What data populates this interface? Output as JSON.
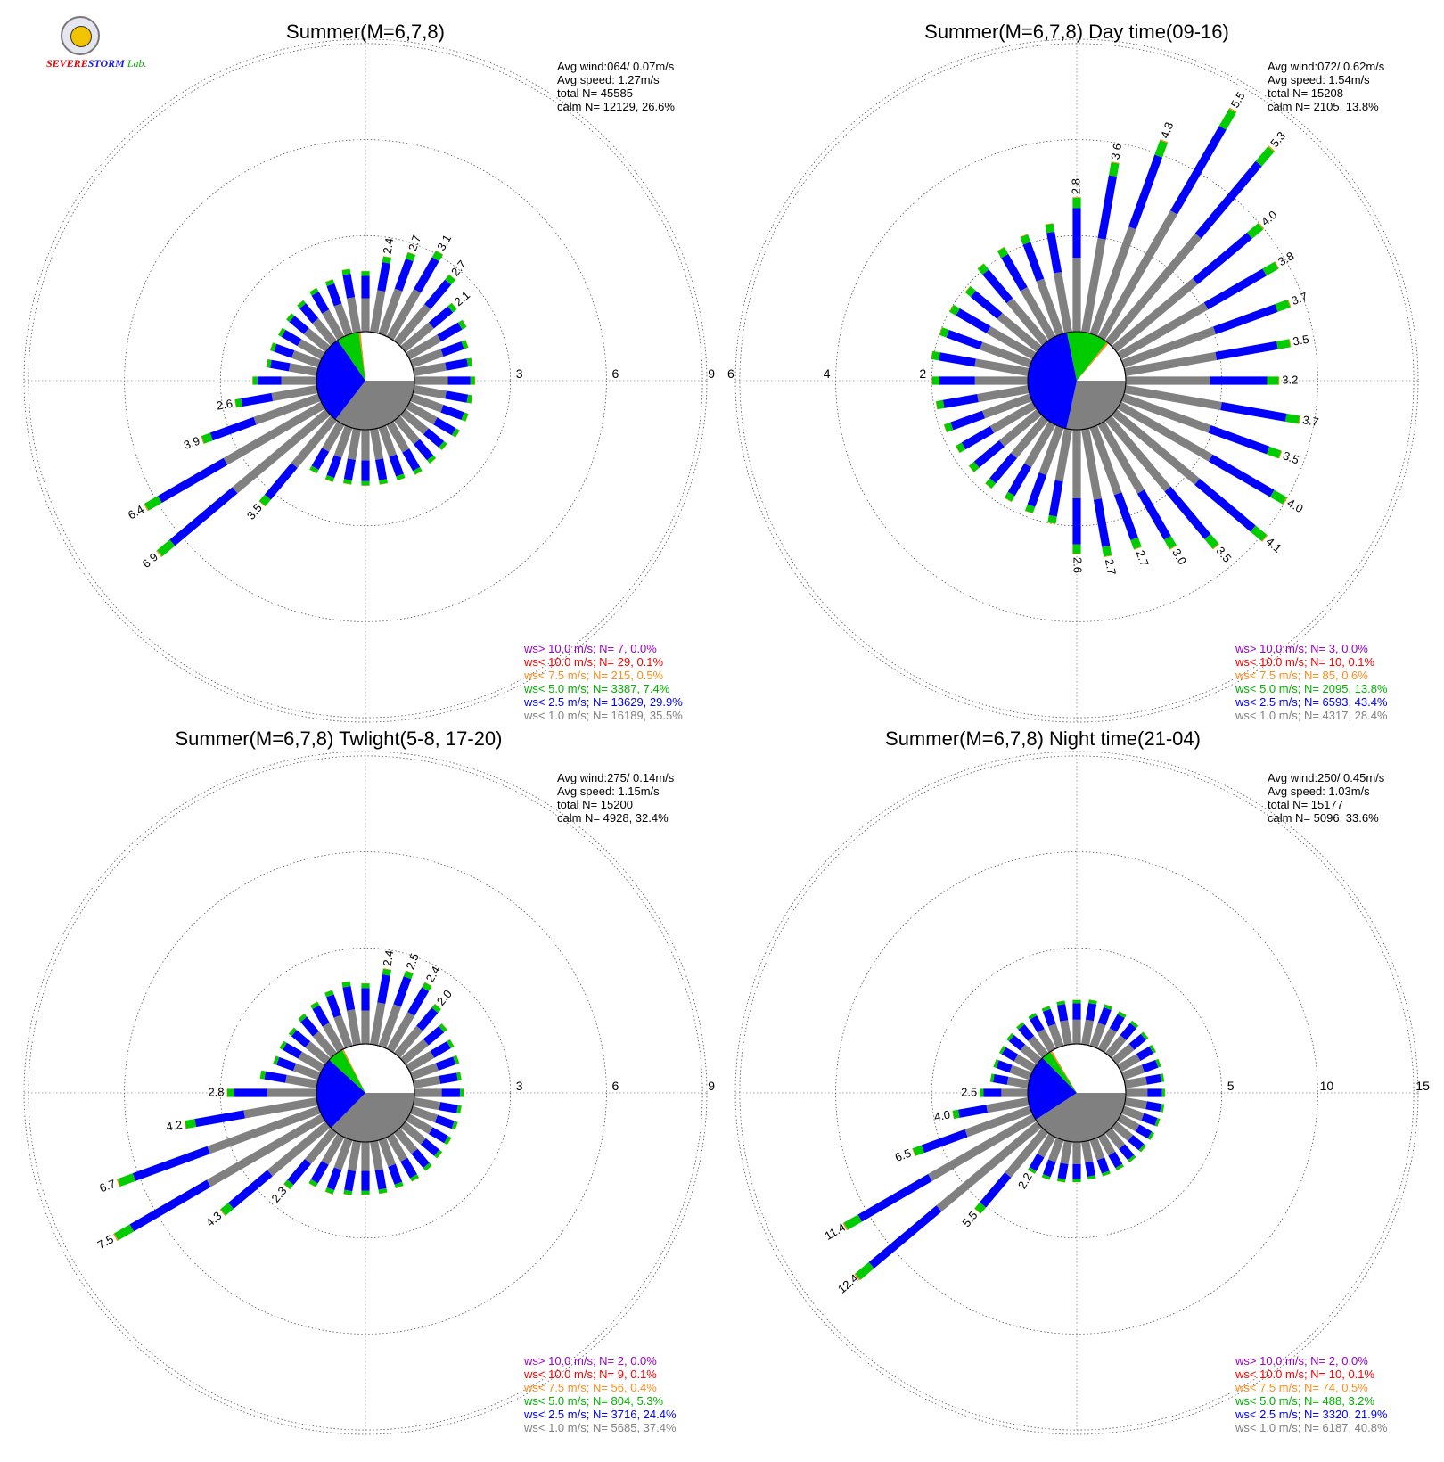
{
  "logo": {
    "text_severe": "SEVERE",
    "text_storm": "STORM",
    "text_lab": "Lab."
  },
  "colors": {
    "ws_lt_1": "#808080",
    "ws_lt_2_5": "#0000ff",
    "ws_lt_5": "#00cc00",
    "ws_lt_7_5": "#ff8c1a",
    "ws_lt_10": "#ff0000",
    "ws_gt_10": "#9900cc",
    "calm": "#ffffff",
    "grid": "#555555"
  },
  "chart_data": [
    {
      "type": "windrose",
      "title": "Summer(M=6,7,8)",
      "rings": [
        3,
        6,
        9
      ],
      "tick_labels": [
        "3",
        "6",
        "9"
      ],
      "tick_side": "right",
      "stats": [
        "Avg wind:064/ 0.07m/s",
        "Avg speed: 1.27m/s",
        "total N=      45585",
        "calm N=  12129,  26.6%"
      ],
      "legend": [
        {
          "text": "ws> 10.0 m/s; N=     7,  0.0%",
          "color": "#9900cc"
        },
        {
          "text": "ws< 10.0 m/s; N=    29,  0.1%",
          "color": "#ff0000"
        },
        {
          "text": "ws<  7.5 m/s; N=   215,  0.5%",
          "color": "#ff8c1a"
        },
        {
          "text": "ws<  5.0 m/s; N=  3387,  7.4%",
          "color": "#00b000"
        },
        {
          "text": "ws<  2.5 m/s; N= 13629, 29.9%",
          "color": "#0000ff"
        },
        {
          "text": "ws<  1.0 m/s; N= 16189, 35.5%",
          "color": "#808080"
        }
      ],
      "calm_pct": 26.6,
      "pie_pct": [
        35.5,
        29.9,
        7.4,
        0.6
      ],
      "bars": [
        {
          "dir": 0,
          "total": 1.9
        },
        {
          "dir": 10,
          "total": 2.4,
          "label": "2.4"
        },
        {
          "dir": 20,
          "total": 2.7,
          "label": "2.7"
        },
        {
          "dir": 30,
          "total": 3.1,
          "label": "3.1"
        },
        {
          "dir": 40,
          "total": 2.7,
          "label": "2.7"
        },
        {
          "dir": 50,
          "total": 2.1,
          "label": "2.1"
        },
        {
          "dir": 60,
          "total": 2.05
        },
        {
          "dir": 70,
          "total": 1.85
        },
        {
          "dir": 80,
          "total": 1.85
        },
        {
          "dir": 90,
          "total": 1.9
        },
        {
          "dir": 100,
          "total": 1.85
        },
        {
          "dir": 110,
          "total": 1.85
        },
        {
          "dir": 120,
          "total": 1.8
        },
        {
          "dir": 130,
          "total": 1.7
        },
        {
          "dir": 140,
          "total": 1.75
        },
        {
          "dir": 150,
          "total": 1.8
        },
        {
          "dir": 160,
          "total": 1.75
        },
        {
          "dir": 170,
          "total": 1.75
        },
        {
          "dir": 180,
          "total": 1.75
        },
        {
          "dir": 190,
          "total": 1.75
        },
        {
          "dir": 200,
          "total": 1.8
        },
        {
          "dir": 210,
          "total": 1.75
        },
        {
          "dir": 220,
          "total": 3.5,
          "label": "3.5"
        },
        {
          "dir": 230,
          "total": 6.9,
          "label": "6.9"
        },
        {
          "dir": 240,
          "total": 6.4,
          "label": "6.4"
        },
        {
          "dir": 250,
          "total": 3.9,
          "label": "3.9"
        },
        {
          "dir": 260,
          "total": 2.6,
          "label": "2.6"
        },
        {
          "dir": 270,
          "total": 2.0
        },
        {
          "dir": 280,
          "total": 1.6
        },
        {
          "dir": 290,
          "total": 1.6
        },
        {
          "dir": 300,
          "total": 1.55
        },
        {
          "dir": 310,
          "total": 1.6
        },
        {
          "dir": 320,
          "total": 1.65
        },
        {
          "dir": 330,
          "total": 1.75
        },
        {
          "dir": 340,
          "total": 1.8
        },
        {
          "dir": 350,
          "total": 2.0
        }
      ]
    },
    {
      "type": "windrose",
      "title": "Summer(M=6,7,8) Day time(09-16)",
      "rings": [
        2,
        4,
        6
      ],
      "tick_labels": [
        "2",
        "4",
        "6"
      ],
      "tick_side": "left",
      "stats": [
        "Avg wind:072/ 0.62m/s",
        "Avg speed: 1.54m/s",
        "total N=      15208",
        "calm N=  2105,  13.8%"
      ],
      "legend": [
        {
          "text": "ws> 10.0 m/s; N=     3,  0.0%",
          "color": "#9900cc"
        },
        {
          "text": "ws< 10.0 m/s; N=    10,  0.1%",
          "color": "#ff0000"
        },
        {
          "text": "ws<  7.5 m/s; N=    85,  0.6%",
          "color": "#ff8c1a"
        },
        {
          "text": "ws<  5.0 m/s; N=  2095, 13.8%",
          "color": "#00b000"
        },
        {
          "text": "ws<  2.5 m/s; N=  6593, 43.4%",
          "color": "#0000ff"
        },
        {
          "text": "ws<  1.0 m/s; N=  4317, 28.4%",
          "color": "#808080"
        }
      ],
      "calm_pct": 13.8,
      "pie_pct": [
        28.4,
        43.4,
        13.8,
        0.7
      ],
      "bars": [
        {
          "dir": 0,
          "total": 2.8,
          "label": "2.8"
        },
        {
          "dir": 10,
          "total": 3.6,
          "label": "3.6"
        },
        {
          "dir": 20,
          "total": 4.3,
          "label": "4.3"
        },
        {
          "dir": 30,
          "total": 5.5,
          "label": "5.5"
        },
        {
          "dir": 40,
          "total": 5.3,
          "label": "5.3"
        },
        {
          "dir": 50,
          "total": 4.0,
          "label": "4.0"
        },
        {
          "dir": 60,
          "total": 3.8,
          "label": "3.8"
        },
        {
          "dir": 70,
          "total": 3.7,
          "label": "3.7"
        },
        {
          "dir": 80,
          "total": 3.5,
          "label": "3.5"
        },
        {
          "dir": 90,
          "total": 3.2,
          "label": "3.2"
        },
        {
          "dir": 100,
          "total": 3.7,
          "label": "3.7"
        },
        {
          "dir": 110,
          "total": 3.5,
          "label": "3.5"
        },
        {
          "dir": 120,
          "total": 4.0,
          "label": "4.0"
        },
        {
          "dir": 130,
          "total": 4.1,
          "label": "4.1"
        },
        {
          "dir": 140,
          "total": 3.5,
          "label": "3.5"
        },
        {
          "dir": 150,
          "total": 3.0,
          "label": "3.0"
        },
        {
          "dir": 160,
          "total": 2.7,
          "label": "2.7"
        },
        {
          "dir": 170,
          "total": 2.7,
          "label": "2.7"
        },
        {
          "dir": 180,
          "total": 2.6,
          "label": "2.6"
        },
        {
          "dir": 190,
          "total": 2.0
        },
        {
          "dir": 200,
          "total": 1.9
        },
        {
          "dir": 210,
          "total": 1.85
        },
        {
          "dir": 220,
          "total": 1.85
        },
        {
          "dir": 230,
          "total": 1.85
        },
        {
          "dir": 240,
          "total": 1.85
        },
        {
          "dir": 250,
          "total": 1.9
        },
        {
          "dir": 260,
          "total": 1.95
        },
        {
          "dir": 270,
          "total": 2.0
        },
        {
          "dir": 280,
          "total": 2.05
        },
        {
          "dir": 290,
          "total": 2.0
        },
        {
          "dir": 300,
          "total": 2.0
        },
        {
          "dir": 310,
          "total": 1.95
        },
        {
          "dir": 320,
          "total": 2.1
        },
        {
          "dir": 330,
          "total": 2.15
        },
        {
          "dir": 340,
          "total": 2.2
        },
        {
          "dir": 350,
          "total": 2.3
        }
      ]
    },
    {
      "type": "windrose",
      "title": "Summer(M=6,7,8) Twlight(5-8, 17-20)",
      "rings": [
        3,
        6,
        9
      ],
      "tick_labels": [
        "3",
        "6",
        "9"
      ],
      "tick_side": "right",
      "stats": [
        "Avg wind:275/ 0.14m/s",
        "Avg speed: 1.15m/s",
        "total N=      15200",
        "calm N=  4928,  32.4%"
      ],
      "legend": [
        {
          "text": "ws> 10.0 m/s; N=     2,  0.0%",
          "color": "#9900cc"
        },
        {
          "text": "ws< 10.0 m/s; N=     9,  0.1%",
          "color": "#ff0000"
        },
        {
          "text": "ws<  7.5 m/s; N=    56,  0.4%",
          "color": "#ff8c1a"
        },
        {
          "text": "ws<  5.0 m/s; N=   804,  5.3%",
          "color": "#00b000"
        },
        {
          "text": "ws<  2.5 m/s; N=  3716, 24.4%",
          "color": "#0000ff"
        },
        {
          "text": "ws<  1.0 m/s; N=  5685, 37.4%",
          "color": "#808080"
        }
      ],
      "calm_pct": 32.4,
      "pie_pct": [
        37.4,
        24.4,
        5.3,
        0.5
      ],
      "bars": [
        {
          "dir": 0,
          "total": 1.9
        },
        {
          "dir": 10,
          "total": 2.4,
          "label": "2.4"
        },
        {
          "dir": 20,
          "total": 2.5,
          "label": "2.5"
        },
        {
          "dir": 30,
          "total": 2.4,
          "label": "2.4"
        },
        {
          "dir": 40,
          "total": 2.0,
          "label": "2.0"
        },
        {
          "dir": 50,
          "total": 1.7
        },
        {
          "dir": 60,
          "total": 1.6
        },
        {
          "dir": 70,
          "total": 1.55
        },
        {
          "dir": 80,
          "total": 1.5
        },
        {
          "dir": 90,
          "total": 1.55
        },
        {
          "dir": 100,
          "total": 1.5
        },
        {
          "dir": 110,
          "total": 1.5
        },
        {
          "dir": 120,
          "total": 1.5
        },
        {
          "dir": 130,
          "total": 1.5
        },
        {
          "dir": 140,
          "total": 1.55
        },
        {
          "dir": 150,
          "total": 1.6
        },
        {
          "dir": 160,
          "total": 1.6
        },
        {
          "dir": 170,
          "total": 1.65
        },
        {
          "dir": 180,
          "total": 1.65
        },
        {
          "dir": 190,
          "total": 1.7
        },
        {
          "dir": 200,
          "total": 1.8
        },
        {
          "dir": 210,
          "total": 1.8
        },
        {
          "dir": 220,
          "total": 2.3,
          "label": "2.3"
        },
        {
          "dir": 230,
          "total": 4.3,
          "label": "4.3"
        },
        {
          "dir": 240,
          "total": 7.5,
          "label": "7.5"
        },
        {
          "dir": 250,
          "total": 6.7,
          "label": "6.7"
        },
        {
          "dir": 260,
          "total": 4.2,
          "label": "4.2"
        },
        {
          "dir": 270,
          "total": 2.8,
          "label": "2.8"
        },
        {
          "dir": 280,
          "total": 1.8
        },
        {
          "dir": 290,
          "total": 1.5
        },
        {
          "dir": 300,
          "total": 1.5
        },
        {
          "dir": 310,
          "total": 1.5
        },
        {
          "dir": 320,
          "total": 1.6
        },
        {
          "dir": 330,
          "total": 1.7
        },
        {
          "dir": 340,
          "total": 1.85
        },
        {
          "dir": 350,
          "total": 2.0
        }
      ]
    },
    {
      "type": "windrose",
      "title": "Summer(M=6,7,8) Night time(21-04)",
      "rings": [
        5,
        10,
        15
      ],
      "tick_labels": [
        "5",
        "10",
        "15"
      ],
      "tick_side": "right",
      "stats": [
        "Avg wind:250/ 0.45m/s",
        "Avg speed: 1.03m/s",
        "total N=      15177",
        "calm N=  5096,  33.6%"
      ],
      "legend": [
        {
          "text": "ws> 10.0 m/s; N=     2,  0.0%",
          "color": "#9900cc"
        },
        {
          "text": "ws< 10.0 m/s; N=    10,  0.1%",
          "color": "#ff0000"
        },
        {
          "text": "ws<  7.5 m/s; N=    74,  0.5%",
          "color": "#ff8c1a"
        },
        {
          "text": "ws<  5.0 m/s; N=   488,  3.2%",
          "color": "#00b000"
        },
        {
          "text": "ws<  2.5 m/s; N=  3320, 21.9%",
          "color": "#0000ff"
        },
        {
          "text": "ws<  1.0 m/s; N=  6187, 40.8%",
          "color": "#808080"
        }
      ],
      "calm_pct": 33.6,
      "pie_pct": [
        40.8,
        21.9,
        3.2,
        0.6
      ],
      "bars": [
        {
          "dir": 0,
          "total": 2.3
        },
        {
          "dir": 10,
          "total": 2.35
        },
        {
          "dir": 20,
          "total": 2.3
        },
        {
          "dir": 30,
          "total": 2.25
        },
        {
          "dir": 40,
          "total": 2.2
        },
        {
          "dir": 50,
          "total": 2.15
        },
        {
          "dir": 60,
          "total": 2.1
        },
        {
          "dir": 70,
          "total": 2.05
        },
        {
          "dir": 80,
          "total": 2.05
        },
        {
          "dir": 90,
          "total": 2.05
        },
        {
          "dir": 100,
          "total": 2.05
        },
        {
          "dir": 110,
          "total": 2.0
        },
        {
          "dir": 120,
          "total": 2.0
        },
        {
          "dir": 130,
          "total": 2.0
        },
        {
          "dir": 140,
          "total": 2.0
        },
        {
          "dir": 150,
          "total": 2.0
        },
        {
          "dir": 160,
          "total": 2.0
        },
        {
          "dir": 170,
          "total": 2.0
        },
        {
          "dir": 180,
          "total": 2.1
        },
        {
          "dir": 190,
          "total": 2.15
        },
        {
          "dir": 200,
          "total": 2.2
        },
        {
          "dir": 210,
          "total": 2.2,
          "label": "2.2"
        },
        {
          "dir": 220,
          "total": 5.5,
          "label": "5.5"
        },
        {
          "dir": 230,
          "total": 12.4,
          "label": "12.4"
        },
        {
          "dir": 240,
          "total": 11.4,
          "label": "11.4"
        },
        {
          "dir": 250,
          "total": 6.5,
          "label": "6.5"
        },
        {
          "dir": 260,
          "total": 4.0,
          "label": "4.0"
        },
        {
          "dir": 270,
          "total": 2.5,
          "label": "2.5"
        },
        {
          "dir": 280,
          "total": 2.0
        },
        {
          "dir": 290,
          "total": 2.0
        },
        {
          "dir": 300,
          "total": 2.0
        },
        {
          "dir": 310,
          "total": 2.05
        },
        {
          "dir": 320,
          "total": 2.1
        },
        {
          "dir": 330,
          "total": 2.15
        },
        {
          "dir": 340,
          "total": 2.2
        },
        {
          "dir": 350,
          "total": 2.3
        }
      ]
    }
  ]
}
